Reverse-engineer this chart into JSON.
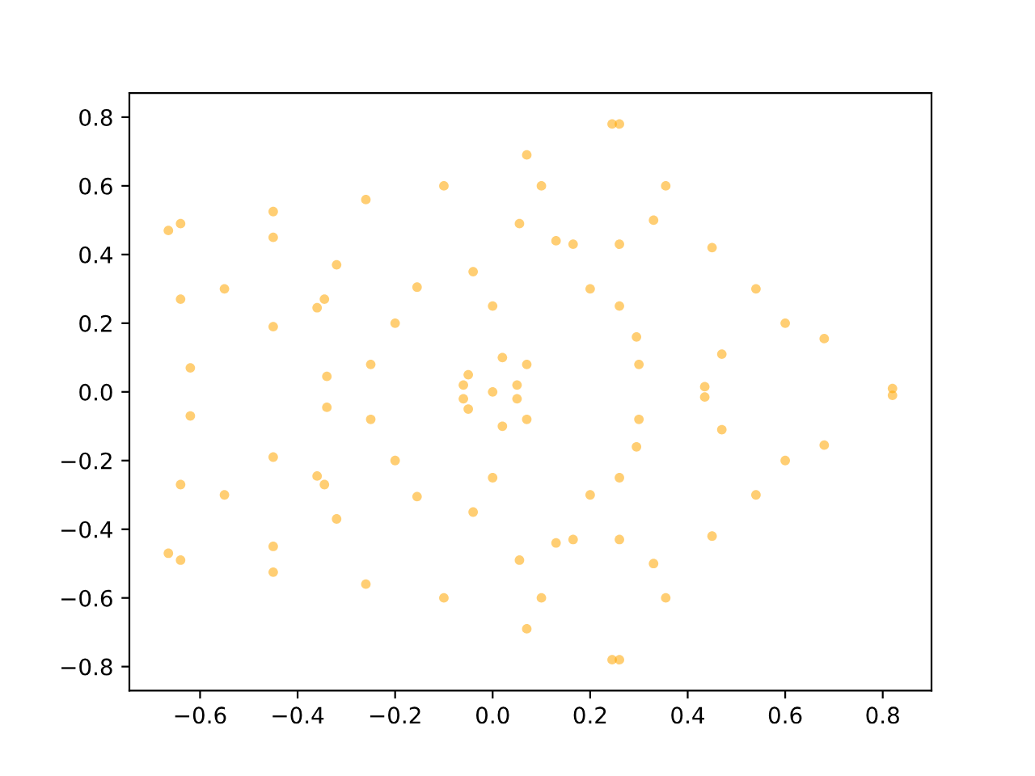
{
  "chart_data": {
    "type": "scatter",
    "xlim": [
      -0.745,
      0.9
    ],
    "ylim": [
      -0.87,
      0.87
    ],
    "xticks": [
      {
        "value": -0.6,
        "label": "−0.6"
      },
      {
        "value": -0.4,
        "label": "−0.4"
      },
      {
        "value": -0.2,
        "label": "−0.2"
      },
      {
        "value": 0.0,
        "label": "0.0"
      },
      {
        "value": 0.2,
        "label": "0.2"
      },
      {
        "value": 0.4,
        "label": "0.4"
      },
      {
        "value": 0.6,
        "label": "0.6"
      },
      {
        "value": 0.8,
        "label": "0.8"
      }
    ],
    "yticks": [
      {
        "value": -0.8,
        "label": "−0.8"
      },
      {
        "value": -0.6,
        "label": "−0.6"
      },
      {
        "value": -0.4,
        "label": "−0.4"
      },
      {
        "value": -0.2,
        "label": "−0.2"
      },
      {
        "value": 0.0,
        "label": "0.0"
      },
      {
        "value": 0.2,
        "label": "0.2"
      },
      {
        "value": 0.4,
        "label": "0.4"
      },
      {
        "value": 0.6,
        "label": "0.6"
      },
      {
        "value": 0.8,
        "label": "0.8"
      }
    ],
    "marker": "circle",
    "grid": false,
    "series": [
      {
        "color": "#ffa500",
        "x": [
          0.05,
          0.54,
          0.82,
          0.295,
          0.68,
          0.435,
          0.47,
          0.6,
          0.3,
          0.07,
          0.45,
          0.26,
          0.26,
          0.355,
          0.165,
          0.26,
          0.33,
          0.2,
          0.02,
          0.245,
          -0.1,
          0.13,
          0.07,
          -0.04,
          0.055,
          0.1,
          0.0,
          -0.05,
          -0.26,
          -0.64,
          -0.155,
          -0.45,
          -0.345,
          -0.32,
          -0.45,
          -0.2,
          -0.06,
          -0.665,
          -0.62,
          -0.36,
          -0.64,
          -0.34,
          -0.45,
          -0.55,
          -0.25,
          0.05,
          0.54,
          0.82,
          0.295,
          0.68,
          0.435,
          0.47,
          0.6,
          0.3,
          0.07,
          0.45,
          0.26,
          0.26,
          0.355,
          0.165,
          0.26,
          0.33,
          0.2,
          0.02,
          0.245,
          -0.1,
          0.13,
          0.07,
          -0.04,
          0.055,
          0.1,
          0.0,
          -0.05,
          -0.26,
          -0.64,
          -0.155,
          -0.45,
          -0.345,
          -0.32,
          -0.45,
          -0.2,
          -0.06,
          -0.665,
          -0.62,
          -0.36,
          -0.64,
          -0.34,
          -0.45,
          -0.55,
          -0.25,
          0.0
        ],
        "values": [
          0.02,
          0.3,
          0.01,
          0.16,
          0.155,
          0.015,
          0.11,
          0.2,
          0.08,
          0.08,
          0.42,
          0.78,
          0.25,
          0.6,
          0.43,
          0.43,
          0.5,
          0.3,
          0.1,
          0.78,
          0.6,
          0.44,
          0.69,
          0.35,
          0.49,
          0.6,
          0.25,
          0.05,
          0.56,
          0.49,
          0.305,
          0.525,
          0.27,
          0.37,
          0.45,
          0.2,
          0.02,
          0.47,
          0.07,
          0.245,
          0.27,
          0.045,
          0.19,
          0.3,
          0.08,
          -0.02,
          -0.3,
          -0.01,
          -0.16,
          -0.155,
          -0.015,
          -0.11,
          -0.2,
          -0.08,
          -0.08,
          -0.42,
          -0.78,
          -0.25,
          -0.6,
          -0.43,
          -0.43,
          -0.5,
          -0.3,
          -0.1,
          -0.78,
          -0.6,
          -0.44,
          -0.69,
          -0.35,
          -0.49,
          -0.6,
          -0.25,
          -0.05,
          -0.56,
          -0.49,
          -0.305,
          -0.525,
          -0.27,
          -0.37,
          -0.45,
          -0.2,
          -0.02,
          -0.47,
          -0.07,
          -0.245,
          -0.27,
          -0.045,
          -0.19,
          -0.3,
          -0.08,
          0.0
        ]
      }
    ]
  }
}
